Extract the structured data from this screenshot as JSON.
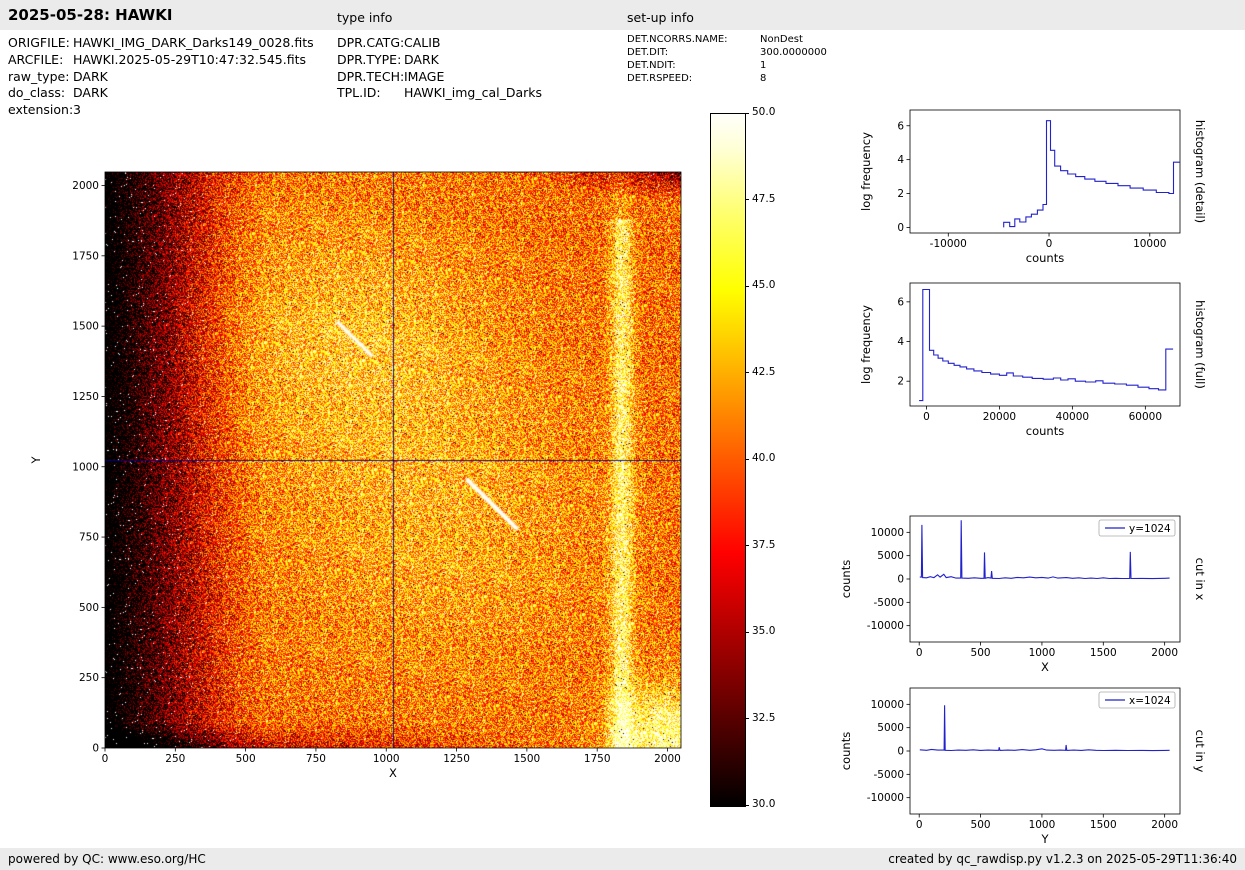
{
  "header": {
    "title": "2025-05-28: HAWKI",
    "type_info_label": "type info",
    "setup_info_label": "set-up info"
  },
  "file_info": {
    "rows": [
      {
        "label": "ORIGFILE:",
        "value": "HAWKI_IMG_DARK_Darks149_0028.fits"
      },
      {
        "label": "ARCFILE:",
        "value": "HAWKI.2025-05-29T10:47:32.545.fits"
      },
      {
        "label": "raw_type:",
        "value": "DARK"
      },
      {
        "label": "do_class:",
        "value": "DARK"
      },
      {
        "label": "extension:",
        "value": "3"
      }
    ]
  },
  "type_info": {
    "rows": [
      {
        "label": "DPR.CATG:",
        "value": "CALIB"
      },
      {
        "label": "DPR.TYPE:",
        "value": "DARK"
      },
      {
        "label": "DPR.TECH:",
        "value": "IMAGE"
      },
      {
        "label": "TPL.ID:",
        "value": "HAWKI_img_cal_Darks"
      }
    ]
  },
  "setup_info": {
    "rows": [
      {
        "label": "DET.NCORRS.NAME:",
        "value": "NonDest"
      },
      {
        "label": "DET.DIT:",
        "value": "300.0000000"
      },
      {
        "label": "DET.NDIT:",
        "value": "1"
      },
      {
        "label": "DET.RSPEED:",
        "value": "8"
      }
    ]
  },
  "footer": {
    "left": "powered by QC: www.eso.org/HC",
    "right": "created by qc_rawdisp.py v1.2.3 on 2025-05-29T11:36:40"
  },
  "chart_data": [
    {
      "id": "image",
      "type": "heatmap",
      "title": "",
      "xlabel": "X",
      "ylabel": "Y",
      "xlim": [
        0,
        2048
      ],
      "ylim": [
        0,
        2048
      ],
      "xticks": [
        0,
        250,
        500,
        750,
        1000,
        1250,
        1500,
        1750,
        2000
      ],
      "yticks": [
        0,
        250,
        500,
        750,
        1000,
        1250,
        1500,
        1750,
        2000
      ],
      "colormap": "hot",
      "colorbar": {
        "range": [
          30.0,
          50.0
        ],
        "ticks": [
          30.0,
          32.5,
          35.0,
          37.5,
          40.0,
          42.5,
          45.0,
          47.5,
          50.0
        ]
      },
      "crosshair": {
        "x": 1024,
        "y": 1024,
        "color": "#00008b"
      },
      "features": "noisy 2048x2048 raw dark frame: dark left edge with white hot pixels, bright mottled centre, bright vertical stripe near x=1870, bright bottom-right corner, diagonal bright streaks near (900,1450) and (1370,870)"
    },
    {
      "id": "hist_detail",
      "type": "line",
      "step": true,
      "xlabel": "counts",
      "ylabel": "log frequency",
      "right_label": "histogram (detail)",
      "xlim": [
        -13800,
        13000
      ],
      "ylim": [
        -0.33,
        6.93
      ],
      "xticks": [
        -10000,
        0,
        10000
      ],
      "yticks": [
        0,
        2,
        4,
        6
      ],
      "legend": null,
      "series": [
        {
          "name": "histogram (detail)",
          "color": "#2222cc",
          "points": [
            [
              -4500,
              0
            ],
            [
              -4500,
              0.3
            ],
            [
              -3900,
              0.3
            ],
            [
              -3900,
              0.05
            ],
            [
              -3400,
              0.05
            ],
            [
              -3400,
              0.5
            ],
            [
              -2900,
              0.5
            ],
            [
              -2900,
              0.32
            ],
            [
              -2300,
              0.32
            ],
            [
              -2300,
              0.62
            ],
            [
              -1750,
              0.62
            ],
            [
              -1750,
              0.78
            ],
            [
              -1150,
              0.78
            ],
            [
              -1150,
              1.02
            ],
            [
              -600,
              1.02
            ],
            [
              -600,
              1.35
            ],
            [
              -250,
              1.35
            ],
            [
              -250,
              6.3
            ],
            [
              150,
              6.3
            ],
            [
              150,
              4.55
            ],
            [
              560,
              4.55
            ],
            [
              560,
              3.62
            ],
            [
              1150,
              3.62
            ],
            [
              1150,
              3.35
            ],
            [
              1850,
              3.35
            ],
            [
              1850,
              3.15
            ],
            [
              2650,
              3.15
            ],
            [
              2650,
              3.0
            ],
            [
              3550,
              3.0
            ],
            [
              3550,
              2.85
            ],
            [
              4550,
              2.85
            ],
            [
              4550,
              2.72
            ],
            [
              5650,
              2.72
            ],
            [
              5650,
              2.6
            ],
            [
              6850,
              2.6
            ],
            [
              6850,
              2.46
            ],
            [
              8050,
              2.46
            ],
            [
              8050,
              2.32
            ],
            [
              9350,
              2.32
            ],
            [
              9350,
              2.2
            ],
            [
              10650,
              2.2
            ],
            [
              10650,
              2.06
            ],
            [
              11900,
              2.06
            ],
            [
              11900,
              2.0
            ],
            [
              12350,
              2.0
            ],
            [
              12350,
              3.85
            ],
            [
              12950,
              3.85
            ]
          ]
        }
      ]
    },
    {
      "id": "hist_full",
      "type": "line",
      "step": true,
      "xlabel": "counts",
      "ylabel": "log frequency",
      "right_label": "histogram (full)",
      "xlim": [
        -4500,
        69500
      ],
      "ylim": [
        0.75,
        6.95
      ],
      "xticks": [
        0,
        20000,
        40000,
        60000
      ],
      "yticks": [
        2,
        4,
        6
      ],
      "legend": null,
      "series": [
        {
          "name": "histogram (full)",
          "color": "#2222cc",
          "points": [
            [
              -2000,
              1.02
            ],
            [
              -1000,
              1.02
            ],
            [
              -1000,
              6.62
            ],
            [
              850,
              6.62
            ],
            [
              850,
              3.56
            ],
            [
              2000,
              3.56
            ],
            [
              2000,
              3.32
            ],
            [
              3200,
              3.32
            ],
            [
              3200,
              3.16
            ],
            [
              4500,
              3.16
            ],
            [
              4500,
              3.02
            ],
            [
              6000,
              3.02
            ],
            [
              6000,
              2.9
            ],
            [
              7600,
              2.9
            ],
            [
              7600,
              2.8
            ],
            [
              9200,
              2.8
            ],
            [
              9200,
              2.72
            ],
            [
              11000,
              2.72
            ],
            [
              11000,
              2.62
            ],
            [
              13000,
              2.62
            ],
            [
              13000,
              2.52
            ],
            [
              15200,
              2.52
            ],
            [
              15200,
              2.44
            ],
            [
              17600,
              2.44
            ],
            [
              17600,
              2.36
            ],
            [
              20000,
              2.36
            ],
            [
              20000,
              2.3
            ],
            [
              22000,
              2.3
            ],
            [
              22000,
              2.42
            ],
            [
              23800,
              2.42
            ],
            [
              23800,
              2.26
            ],
            [
              26400,
              2.26
            ],
            [
              26400,
              2.2
            ],
            [
              29000,
              2.2
            ],
            [
              29000,
              2.14
            ],
            [
              32000,
              2.14
            ],
            [
              32000,
              2.1
            ],
            [
              34800,
              2.1
            ],
            [
              34800,
              2.16
            ],
            [
              36800,
              2.16
            ],
            [
              36800,
              2.06
            ],
            [
              38800,
              2.06
            ],
            [
              38800,
              2.12
            ],
            [
              40800,
              2.12
            ],
            [
              40800,
              2.0
            ],
            [
              43600,
              2.0
            ],
            [
              43600,
              1.96
            ],
            [
              46400,
              1.96
            ],
            [
              46400,
              2.02
            ],
            [
              48400,
              2.02
            ],
            [
              48400,
              1.9
            ],
            [
              51600,
              1.9
            ],
            [
              51600,
              1.86
            ],
            [
              54800,
              1.86
            ],
            [
              54800,
              1.8
            ],
            [
              58000,
              1.8
            ],
            [
              58000,
              1.7
            ],
            [
              61000,
              1.7
            ],
            [
              61000,
              1.62
            ],
            [
              63600,
              1.62
            ],
            [
              63600,
              1.56
            ],
            [
              65600,
              1.56
            ],
            [
              65600,
              3.62
            ],
            [
              67600,
              3.62
            ]
          ]
        }
      ]
    },
    {
      "id": "cut_x",
      "type": "line",
      "xlabel": "X",
      "ylabel": "counts",
      "right_label": "cut in x",
      "xlim": [
        -75,
        2125
      ],
      "ylim": [
        -13500,
        13500
      ],
      "xticks": [
        0,
        500,
        1000,
        1500,
        2000
      ],
      "yticks": [
        -10000,
        -5000,
        0,
        5000,
        10000
      ],
      "legend": {
        "label": "y=1024"
      },
      "series": [
        {
          "name": "y=1024",
          "color": "#2222cc",
          "points": [
            [
              5,
              400
            ],
            [
              18,
              400
            ],
            [
              22,
              11600
            ],
            [
              28,
              300
            ],
            [
              60,
              250
            ],
            [
              90,
              500
            ],
            [
              120,
              300
            ],
            [
              150,
              900
            ],
            [
              170,
              400
            ],
            [
              200,
              1000
            ],
            [
              220,
              300
            ],
            [
              260,
              500
            ],
            [
              300,
              200
            ],
            [
              338,
              200
            ],
            [
              342,
              12600
            ],
            [
              348,
              200
            ],
            [
              400,
              150
            ],
            [
              450,
              250
            ],
            [
              500,
              150
            ],
            [
              528,
              150
            ],
            [
              532,
              5700
            ],
            [
              538,
              150
            ],
            [
              560,
              300
            ],
            [
              585,
              200
            ],
            [
              590,
              1700
            ],
            [
              596,
              150
            ],
            [
              650,
              100
            ],
            [
              700,
              250
            ],
            [
              750,
              150
            ],
            [
              800,
              350
            ],
            [
              850,
              250
            ],
            [
              900,
              400
            ],
            [
              950,
              250
            ],
            [
              1000,
              350
            ],
            [
              1050,
              200
            ],
            [
              1090,
              450
            ],
            [
              1130,
              200
            ],
            [
              1200,
              300
            ],
            [
              1250,
              150
            ],
            [
              1300,
              250
            ],
            [
              1350,
              100
            ],
            [
              1400,
              200
            ],
            [
              1450,
              100
            ],
            [
              1500,
              250
            ],
            [
              1550,
              100
            ],
            [
              1600,
              150
            ],
            [
              1650,
              100
            ],
            [
              1715,
              100
            ],
            [
              1720,
              5800
            ],
            [
              1726,
              100
            ],
            [
              1800,
              120
            ],
            [
              1900,
              80
            ],
            [
              2000,
              150
            ],
            [
              2040,
              200
            ]
          ]
        }
      ]
    },
    {
      "id": "cut_y",
      "type": "line",
      "xlabel": "Y",
      "ylabel": "counts",
      "right_label": "cut in y",
      "xlim": [
        -75,
        2125
      ],
      "ylim": [
        -13500,
        13500
      ],
      "xticks": [
        0,
        500,
        1000,
        1500,
        2000
      ],
      "yticks": [
        -10000,
        -5000,
        0,
        5000,
        10000
      ],
      "legend": {
        "label": "x=1024"
      },
      "series": [
        {
          "name": "x=1024",
          "color": "#2222cc",
          "points": [
            [
              5,
              250
            ],
            [
              60,
              150
            ],
            [
              100,
              350
            ],
            [
              150,
              200
            ],
            [
              203,
              200
            ],
            [
              207,
              9800
            ],
            [
              212,
              150
            ],
            [
              260,
              100
            ],
            [
              320,
              200
            ],
            [
              380,
              150
            ],
            [
              440,
              250
            ],
            [
              500,
              120
            ],
            [
              560,
              200
            ],
            [
              620,
              150
            ],
            [
              648,
              150
            ],
            [
              652,
              820
            ],
            [
              658,
              120
            ],
            [
              720,
              200
            ],
            [
              780,
              150
            ],
            [
              840,
              300
            ],
            [
              900,
              150
            ],
            [
              950,
              250
            ],
            [
              1000,
              480
            ],
            [
              1040,
              200
            ],
            [
              1100,
              150
            ],
            [
              1150,
              200
            ],
            [
              1193,
              150
            ],
            [
              1197,
              1280
            ],
            [
              1203,
              120
            ],
            [
              1260,
              200
            ],
            [
              1320,
              120
            ],
            [
              1380,
              250
            ],
            [
              1440,
              150
            ],
            [
              1500,
              100
            ],
            [
              1600,
              150
            ],
            [
              1700,
              100
            ],
            [
              1800,
              120
            ],
            [
              1900,
              80
            ],
            [
              2000,
              120
            ],
            [
              2040,
              150
            ]
          ]
        }
      ]
    }
  ]
}
